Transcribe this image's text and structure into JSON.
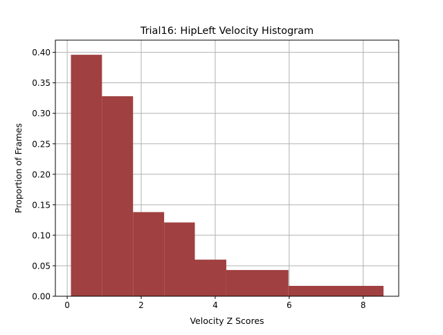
{
  "chart_data": {
    "type": "bar",
    "title": "Trial16: HipLeft Velocity Histogram",
    "xlabel": "Velocity Z Scores",
    "ylabel": "Proportion of Frames",
    "xlim": [
      -0.32,
      8.96
    ],
    "ylim": [
      0,
      0.42
    ],
    "xticks": [
      0,
      2,
      4,
      6,
      8
    ],
    "xtick_labels": [
      "0",
      "2",
      "4",
      "6",
      "8"
    ],
    "yticks": [
      0.0,
      0.05,
      0.1,
      0.15,
      0.2,
      0.25,
      0.3,
      0.35,
      0.4
    ],
    "ytick_labels": [
      "0.00",
      "0.05",
      "0.10",
      "0.15",
      "0.20",
      "0.25",
      "0.30",
      "0.35",
      "0.40"
    ],
    "grid": true,
    "bar_color": "#a04040",
    "grid_color": "#b0b0b0",
    "bins": [
      {
        "x0": 0.1,
        "x1": 0.94,
        "value": 0.396
      },
      {
        "x0": 0.94,
        "x1": 1.78,
        "value": 0.328
      },
      {
        "x0": 1.78,
        "x1": 2.62,
        "value": 0.138
      },
      {
        "x0": 2.62,
        "x1": 3.45,
        "value": 0.121
      },
      {
        "x0": 3.45,
        "x1": 4.3,
        "value": 0.06
      },
      {
        "x0": 4.3,
        "x1": 5.98,
        "value": 0.043
      },
      {
        "x0": 5.98,
        "x1": 8.55,
        "value": 0.017
      }
    ]
  }
}
